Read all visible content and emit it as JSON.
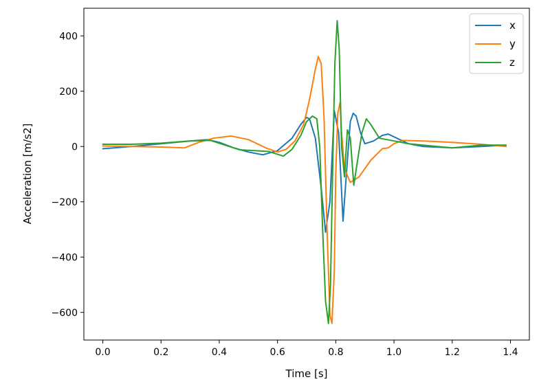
{
  "chart_data": {
    "type": "line",
    "title": "",
    "xlabel": "Time [s]",
    "ylabel": "Acceleration [m/s2]",
    "xlim": [
      -0.065,
      1.465
    ],
    "ylim": [
      -700,
      500
    ],
    "xticks": [
      0.0,
      0.2,
      0.4,
      0.6,
      0.8,
      1.0,
      1.2,
      1.4
    ],
    "xtick_labels": [
      "0.0",
      "0.2",
      "0.4",
      "0.6",
      "0.8",
      "1.0",
      "1.2",
      "1.4"
    ],
    "yticks": [
      -600,
      -400,
      -200,
      0,
      200,
      400
    ],
    "ytick_labels": [
      "−600",
      "−400",
      "−200",
      "0",
      "200",
      "400"
    ],
    "grid": false,
    "legend_position": "top-right",
    "series": [
      {
        "name": "x",
        "color": "#1f77b4",
        "x": [
          0,
          0.1,
          0.2,
          0.3,
          0.36,
          0.4,
          0.45,
          0.5,
          0.55,
          0.6,
          0.65,
          0.68,
          0.7,
          0.71,
          0.73,
          0.75,
          0.765,
          0.78,
          0.795,
          0.81,
          0.825,
          0.84,
          0.85,
          0.86,
          0.87,
          0.885,
          0.9,
          0.93,
          0.96,
          0.98,
          1.0,
          1.05,
          1.1,
          1.2,
          1.3,
          1.385
        ],
        "y": [
          -8,
          0,
          10,
          20,
          25,
          15,
          -5,
          -20,
          -30,
          -15,
          30,
          80,
          105,
          100,
          30,
          -150,
          -310,
          -200,
          130,
          50,
          -270,
          -50,
          90,
          120,
          110,
          50,
          10,
          20,
          40,
          45,
          35,
          10,
          0,
          -5,
          0,
          5
        ]
      },
      {
        "name": "y",
        "color": "#ff7f0e",
        "x": [
          0,
          0.1,
          0.2,
          0.28,
          0.33,
          0.38,
          0.44,
          0.5,
          0.56,
          0.6,
          0.63,
          0.66,
          0.69,
          0.71,
          0.73,
          0.74,
          0.75,
          0.76,
          0.77,
          0.78,
          0.787,
          0.795,
          0.8,
          0.807,
          0.815,
          0.82,
          0.83,
          0.85,
          0.88,
          0.92,
          0.96,
          0.98,
          1.0,
          1.03,
          1.1,
          1.2,
          1.3,
          1.385
        ],
        "y": [
          2,
          0,
          -2,
          -5,
          15,
          30,
          38,
          25,
          -5,
          -20,
          -10,
          20,
          80,
          170,
          280,
          325,
          300,
          100,
          -300,
          -610,
          -640,
          -450,
          -100,
          120,
          160,
          50,
          -80,
          -130,
          -110,
          -50,
          -8,
          -5,
          10,
          22,
          20,
          15,
          8,
          0
        ]
      },
      {
        "name": "z",
        "color": "#2ca02c",
        "x": [
          0,
          0.1,
          0.2,
          0.3,
          0.37,
          0.42,
          0.47,
          0.52,
          0.57,
          0.6,
          0.62,
          0.65,
          0.68,
          0.7,
          0.72,
          0.735,
          0.745,
          0.755,
          0.765,
          0.775,
          0.782,
          0.79,
          0.797,
          0.805,
          0.812,
          0.82,
          0.83,
          0.84,
          0.85,
          0.862,
          0.875,
          0.89,
          0.905,
          0.92,
          0.95,
          1.0,
          1.05,
          1.1,
          1.2,
          1.3,
          1.385
        ],
        "y": [
          8,
          8,
          12,
          20,
          22,
          5,
          -12,
          -15,
          -18,
          -28,
          -35,
          -10,
          40,
          90,
          110,
          100,
          0,
          -300,
          -560,
          -640,
          -500,
          -50,
          300,
          455,
          350,
          0,
          -110,
          60,
          30,
          -140,
          -50,
          50,
          100,
          80,
          30,
          20,
          10,
          5,
          -5,
          5,
          5
        ]
      }
    ]
  }
}
